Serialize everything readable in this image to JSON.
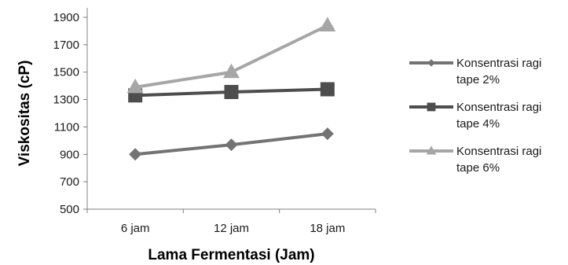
{
  "chart_data": {
    "type": "line",
    "categories": [
      "6 jam",
      "12 jam",
      "18 jam"
    ],
    "xlabel": "Lama Fermentasi (Jam)",
    "ylabel": "Viskositas (cP)",
    "ylim": [
      500,
      1900
    ],
    "yticks": [
      500,
      700,
      900,
      1100,
      1300,
      1500,
      1700,
      1900
    ],
    "grid": false,
    "legend_position": "right",
    "series": [
      {
        "name": "Konsentrasi ragi tape 2%",
        "name_lines": [
          "Konsentrasi ragi",
          "tape 2%"
        ],
        "values": [
          900,
          970,
          1050
        ],
        "color": "#737373",
        "marker": "diamond"
      },
      {
        "name": "Konsentrasi ragi tape 4%",
        "name_lines": [
          "Konsentrasi ragi",
          "tape 4%"
        ],
        "values": [
          1330,
          1355,
          1375
        ],
        "color": "#4d4d4d",
        "marker": "square"
      },
      {
        "name": "Konsentrasi ragi tape 6%",
        "name_lines": [
          "Konsentrasi ragi",
          "tape 6%"
        ],
        "values": [
          1390,
          1500,
          1840
        ],
        "color": "#a6a6a6",
        "marker": "triangle"
      }
    ]
  }
}
